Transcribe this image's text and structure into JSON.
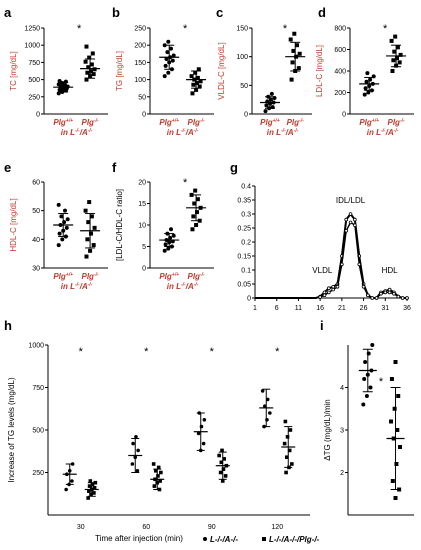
{
  "chart_data": [
    {
      "panel": "a",
      "type": "scatter",
      "ylabel": "TC [mg/dL]",
      "ylim": [
        0,
        1250
      ],
      "yticks": [
        "0",
        "250",
        "500",
        "750",
        "1000",
        "1250"
      ],
      "groups": [
        "Plg+/+",
        "Plg-/-"
      ],
      "group_note": "in L-/A-/-",
      "significance": "*",
      "series": [
        {
          "values": [
            300,
            320,
            340,
            350,
            360,
            370,
            380,
            390,
            400,
            410,
            420,
            430,
            450,
            470,
            480
          ],
          "mean": 390,
          "sd": 70
        },
        {
          "values": [
            500,
            550,
            580,
            600,
            620,
            650,
            680,
            720,
            760,
            820,
            880,
            980
          ],
          "mean": 660,
          "sd": 140
        }
      ]
    },
    {
      "panel": "b",
      "type": "scatter",
      "ylabel": "TG [mg/dL]",
      "ylim": [
        0,
        250
      ],
      "yticks": [
        "0",
        "50",
        "100",
        "150",
        "200",
        "250"
      ],
      "groups": [
        "Plg+/+",
        "Plg-/-"
      ],
      "group_note": "in L-/A-/-",
      "significance": "*",
      "series": [
        {
          "values": [
            110,
            120,
            130,
            140,
            150,
            155,
            160,
            165,
            170,
            180,
            190,
            200,
            210
          ],
          "mean": 165,
          "sd": 35
        },
        {
          "values": [
            60,
            70,
            80,
            85,
            90,
            95,
            100,
            105,
            110,
            120,
            130
          ],
          "mean": 100,
          "sd": 25
        }
      ]
    },
    {
      "panel": "c",
      "type": "scatter",
      "ylabel": "VLDL-C [mg/dL]",
      "ylim": [
        0,
        150
      ],
      "yticks": [
        "0",
        "50",
        "100",
        "150"
      ],
      "groups": [
        "Plg+/+",
        "Plg-/-"
      ],
      "group_note": "in L-/A-/-",
      "significance": "*",
      "series": [
        {
          "values": [
            5,
            10,
            12,
            15,
            18,
            20,
            22,
            25,
            28,
            30,
            35
          ],
          "mean": 20,
          "sd": 10
        },
        {
          "values": [
            60,
            75,
            80,
            90,
            100,
            105,
            110,
            120,
            130,
            140
          ],
          "mean": 100,
          "sd": 25
        }
      ]
    },
    {
      "panel": "d",
      "type": "scatter",
      "ylabel": "LDL-C [mg/dL]",
      "ylim": [
        0,
        800
      ],
      "yticks": [
        "0",
        "200",
        "400",
        "600",
        "800"
      ],
      "groups": [
        "Plg+/+",
        "Plg-/-"
      ],
      "group_note": "in L-/A-/-",
      "significance": "*",
      "series": [
        {
          "values": [
            180,
            200,
            220,
            240,
            260,
            280,
            300,
            320,
            350,
            380
          ],
          "mean": 280,
          "sd": 60
        },
        {
          "values": [
            400,
            450,
            480,
            500,
            520,
            550,
            580,
            620,
            680,
            720
          ],
          "mean": 540,
          "sd": 100
        }
      ]
    },
    {
      "panel": "e",
      "type": "scatter",
      "ylabel": "HDL-C [mg/dL]",
      "ylim": [
        30,
        60
      ],
      "yticks": [
        "30",
        "40",
        "50",
        "60"
      ],
      "groups": [
        "Plg+/+",
        "Plg-/-"
      ],
      "group_note": "in L-/A-/-",
      "significance": "",
      "series": [
        {
          "values": [
            38,
            40,
            41,
            42,
            43,
            44,
            45,
            46,
            47,
            48,
            50,
            52
          ],
          "mean": 45,
          "sd": 4
        },
        {
          "values": [
            34,
            36,
            38,
            40,
            42,
            44,
            46,
            48,
            50,
            53
          ],
          "mean": 43,
          "sd": 6
        }
      ]
    },
    {
      "panel": "f",
      "type": "scatter",
      "ylabel": "[LDL-C/HDL-C ratio]",
      "ylim": [
        0,
        20
      ],
      "yticks": [
        "0",
        "5",
        "10",
        "15",
        "20"
      ],
      "groups": [
        "Plg+/+",
        "Plg-/-"
      ],
      "group_note": "in L-/A-/-",
      "significance": "*",
      "series": [
        {
          "values": [
            4,
            4.5,
            5,
            5.5,
            6,
            6.2,
            6.5,
            7,
            7.5,
            8,
            9
          ],
          "mean": 6.5,
          "sd": 1.5
        },
        {
          "values": [
            9,
            10,
            11,
            12,
            13,
            14,
            15,
            16,
            17,
            18
          ],
          "mean": 14,
          "sd": 3
        }
      ]
    },
    {
      "panel": "g",
      "type": "line",
      "ylim": [
        0,
        0.4
      ],
      "yticks": [
        "0",
        "0.05",
        "0.1",
        "0.15",
        "0.2",
        "0.25",
        "0.3",
        "0.35",
        "0.4"
      ],
      "xticks": [
        "1",
        "6",
        "11",
        "16",
        "21",
        "26",
        "31",
        "36"
      ],
      "annotations": [
        "VLDL",
        "IDL/LDL",
        "HDL"
      ],
      "x": [
        1,
        6,
        11,
        13,
        15,
        16,
        17,
        18,
        19,
        20,
        21,
        22,
        23,
        24,
        25,
        26,
        27,
        28,
        29,
        30,
        31,
        32,
        33,
        34,
        35,
        36
      ],
      "series": [
        {
          "values": [
            0,
            0,
            0,
            0,
            0,
            0.005,
            0.02,
            0.035,
            0.04,
            0.05,
            0.15,
            0.28,
            0.3,
            0.28,
            0.15,
            0.05,
            0.01,
            0,
            0,
            0.02,
            0.025,
            0.03,
            0.02,
            0.005,
            0,
            0
          ]
        },
        {
          "values": [
            0,
            0,
            0,
            0,
            0,
            0.003,
            0.01,
            0.02,
            0.03,
            0.04,
            0.12,
            0.24,
            0.27,
            0.26,
            0.12,
            0.04,
            0.01,
            0,
            0,
            0.015,
            0.02,
            0.02,
            0.015,
            0.005,
            0,
            0
          ]
        }
      ]
    },
    {
      "panel": "h",
      "type": "scatter",
      "ylabel": "Increase of TG levels (mg/dL)",
      "xlabel": "Time after injection (min)",
      "ylim": [
        0,
        1000
      ],
      "yticks": [
        "250",
        "500",
        "750",
        "1000"
      ],
      "categories": [
        "30",
        "60",
        "90",
        "120"
      ],
      "significance": [
        "*",
        "*",
        "*",
        "*"
      ],
      "legend": [
        "L-/-/A-/-",
        "L-/-/A-/-/Plg-/-"
      ],
      "series": [
        {
          "name": "L-/-/A-/-",
          "marker": "circle",
          "points": [
            [
              150,
              180,
              200,
              240,
              260,
              300
            ],
            [
              260,
              300,
              340,
              380,
              420,
              460
            ],
            [
              380,
              420,
              480,
              520,
              560,
              600
            ],
            [
              520,
              560,
              600,
              640,
              680,
              730
            ]
          ],
          "mean": [
            240,
            350,
            490,
            630
          ],
          "sd": [
            60,
            100,
            110,
            110
          ]
        },
        {
          "name": "L-/-/A-/-/Plg-/-",
          "marker": "square",
          "points": [
            [
              100,
              120,
              130,
              140,
              150,
              160,
              170,
              180,
              190,
              200
            ],
            [
              150,
              170,
              190,
              200,
              210,
              230,
              250,
              260,
              280,
              300
            ],
            [
              200,
              230,
              250,
              270,
              290,
              310,
              330,
              350,
              380
            ],
            [
              250,
              280,
              300,
              340,
              380,
              420,
              460,
              500,
              550
            ]
          ],
          "mean": [
            150,
            210,
            290,
            400
          ],
          "sd": [
            40,
            60,
            80,
            120
          ]
        }
      ]
    },
    {
      "panel": "i",
      "type": "scatter",
      "ylabel": "ΔTG (mg/dL)/min",
      "ylim": [
        1,
        5
      ],
      "yticks": [
        "2",
        "3",
        "4"
      ],
      "significance": "*",
      "series": [
        {
          "marker": "circle",
          "values": [
            3.6,
            3.8,
            4.0,
            4.2,
            4.3,
            4.4,
            4.6,
            4.8,
            5.0
          ],
          "mean": 4.4,
          "sd": 0.5
        },
        {
          "marker": "square",
          "values": [
            1.4,
            1.6,
            1.8,
            2.2,
            2.6,
            2.8,
            3.0,
            3.2,
            3.5,
            3.8,
            4.2,
            4.6
          ],
          "mean": 2.8,
          "sd": 1.2
        }
      ]
    }
  ],
  "labels": {
    "a": "a",
    "b": "b",
    "c": "c",
    "d": "d",
    "e": "e",
    "f": "f",
    "g": "g",
    "h": "h",
    "i": "i",
    "plg_wt": "Plg",
    "plg_wt_sup": "+/+",
    "plg_ko": "Plg",
    "plg_ko_sup": "-/-",
    "in_l": "in L",
    "in_l_sup": "-/-",
    "a_part": "/A",
    "a_sup": "-/-",
    "legend_1": "L-/-/A-/-",
    "legend_2": "L-/-/A-/-/Plg-/-"
  }
}
